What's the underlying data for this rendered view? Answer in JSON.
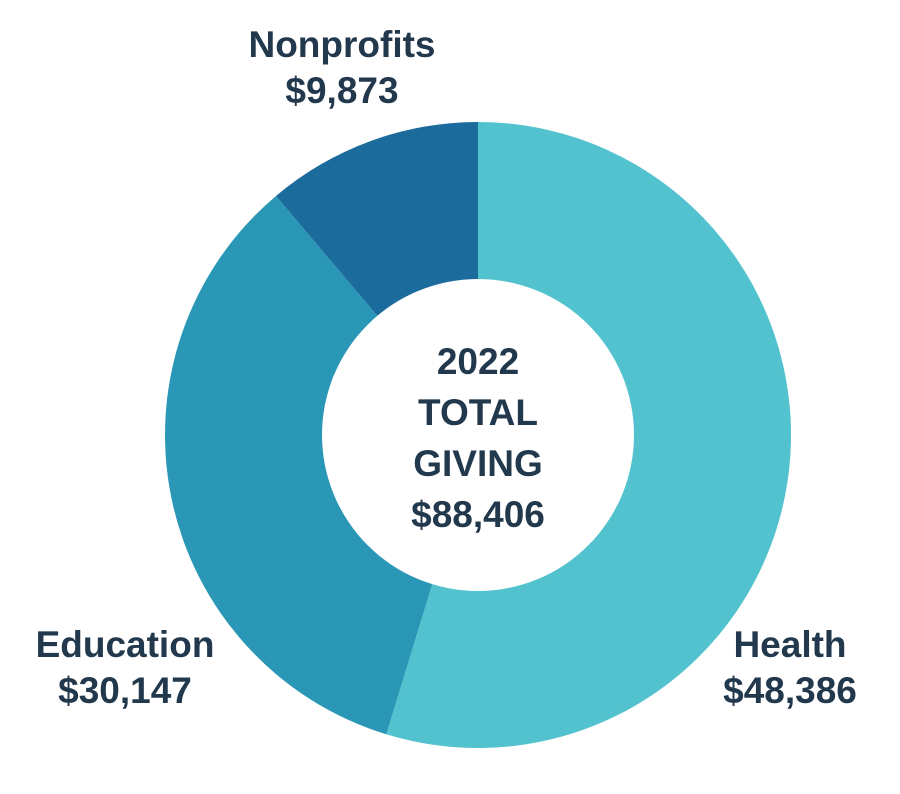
{
  "chart_data": {
    "type": "pie",
    "center": {
      "year": "2022",
      "line1": "TOTAL",
      "line2": "GIVING",
      "total": "$88,406"
    },
    "slices": [
      {
        "category": "Health",
        "value": 48386,
        "value_label": "$48,386",
        "color": "#52c3ce"
      },
      {
        "category": "Education",
        "value": 30147,
        "value_label": "$30,147",
        "color": "#2a97b7"
      },
      {
        "category": "Nonprofits",
        "value": 9873,
        "value_label": "$9,873",
        "color": "#1b6b9c"
      }
    ]
  }
}
